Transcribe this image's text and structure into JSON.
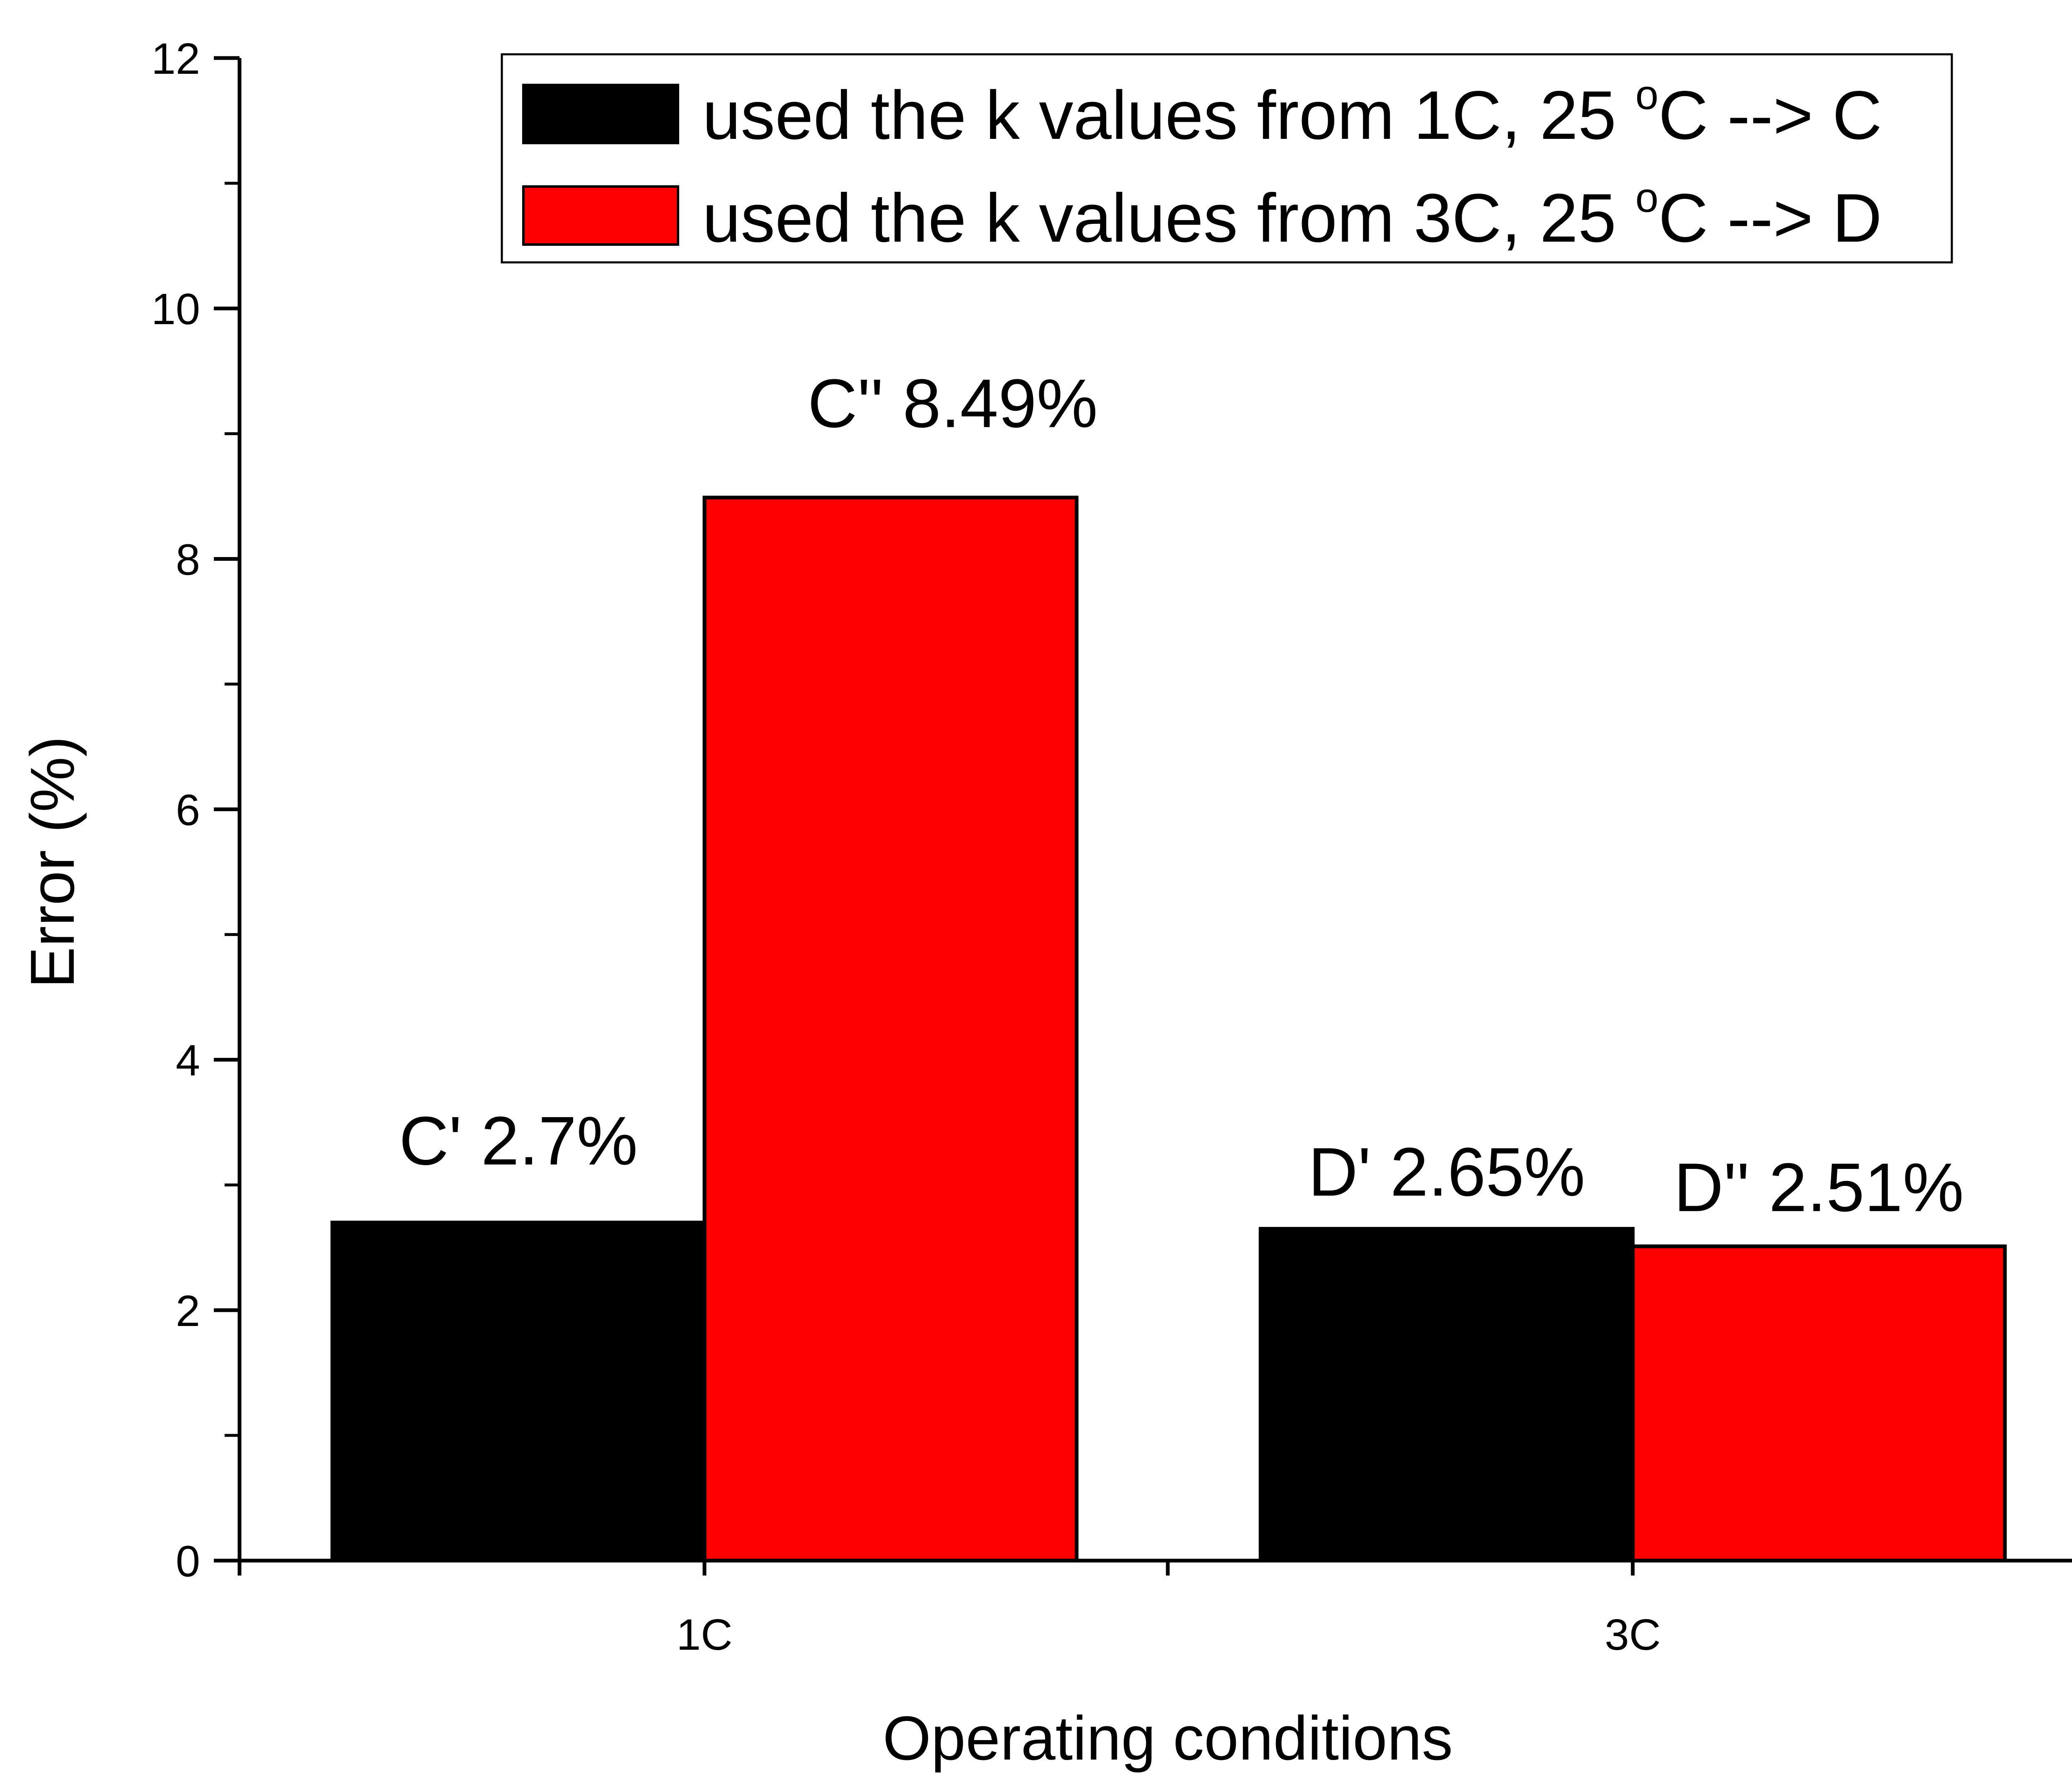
{
  "chart_data": {
    "type": "bar",
    "categories": [
      "1C",
      "3C"
    ],
    "series": [
      {
        "name": "used the k values from 1C, 25 oC --> C",
        "legend": {
          "before": "used the k values from 1C, 25 ",
          "sup": "o",
          "after": "C --> C"
        },
        "color": "#000000",
        "values": [
          2.7,
          2.65
        ],
        "labels": [
          "C'  2.7%",
          "D'  2.65%"
        ]
      },
      {
        "name": "used the k values from 3C, 25 oC --> D",
        "legend": {
          "before": "used the k values from 3C, 25 ",
          "sup": "o",
          "after": "C --> D"
        },
        "color": "#ff0000",
        "values": [
          8.49,
          2.51
        ],
        "labels": [
          "C''  8.49%",
          "D''  2.51%"
        ]
      }
    ],
    "title": "",
    "xlabel": "Operating conditions",
    "ylabel": "Error (%)",
    "ylim": [
      0,
      12
    ],
    "yticks": [
      "0",
      "2",
      "4",
      "6",
      "8",
      "10",
      "12"
    ],
    "grid": false,
    "legend_position": "top-right"
  }
}
